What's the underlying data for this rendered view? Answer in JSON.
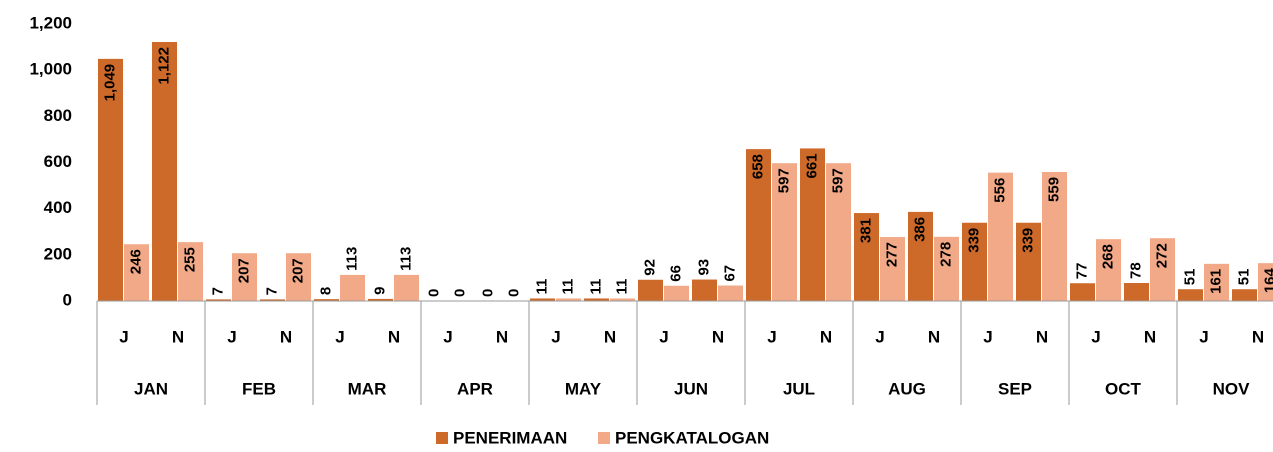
{
  "chart_data": {
    "type": "bar",
    "categories": [
      "J",
      "N",
      "J",
      "N",
      "J",
      "N",
      "J",
      "N",
      "J",
      "N",
      "J",
      "N",
      "J",
      "N",
      "J",
      "N",
      "J",
      "N",
      "J",
      "N",
      "J",
      "N"
    ],
    "group_labels": [
      "JAN",
      "FEB",
      "MAR",
      "APR",
      "MAY",
      "JUN",
      "JUL",
      "AUG",
      "SEP",
      "OCT",
      "NOV"
    ],
    "series": [
      {
        "name": "PENERIMAAN",
        "color": "#cd6a2a",
        "values": [
          1049,
          1122,
          7,
          7,
          8,
          9,
          0,
          0,
          11,
          11,
          92,
          93,
          658,
          661,
          381,
          386,
          339,
          339,
          77,
          78,
          51,
          51
        ],
        "value_labels": [
          "1,049",
          "1,122",
          "7",
          "7",
          "8",
          "9",
          "0",
          "0",
          "11",
          "11",
          "92",
          "93",
          "658",
          "661",
          "381",
          "386",
          "339",
          "339",
          "77",
          "78",
          "51",
          "51"
        ]
      },
      {
        "name": "PENGKATALOGAN",
        "color": "#f2a987",
        "values": [
          246,
          255,
          207,
          207,
          113,
          113,
          0,
          0,
          11,
          11,
          66,
          67,
          597,
          597,
          277,
          278,
          556,
          559,
          268,
          272,
          161,
          164
        ]
      }
    ],
    "ylim": [
      0,
      1200
    ],
    "yticks": [
      0,
      200,
      400,
      600,
      800,
      {
        "value": 1000,
        "label": "1,000"
      },
      {
        "value": 1200,
        "label": "1,200"
      }
    ],
    "grid": false
  }
}
